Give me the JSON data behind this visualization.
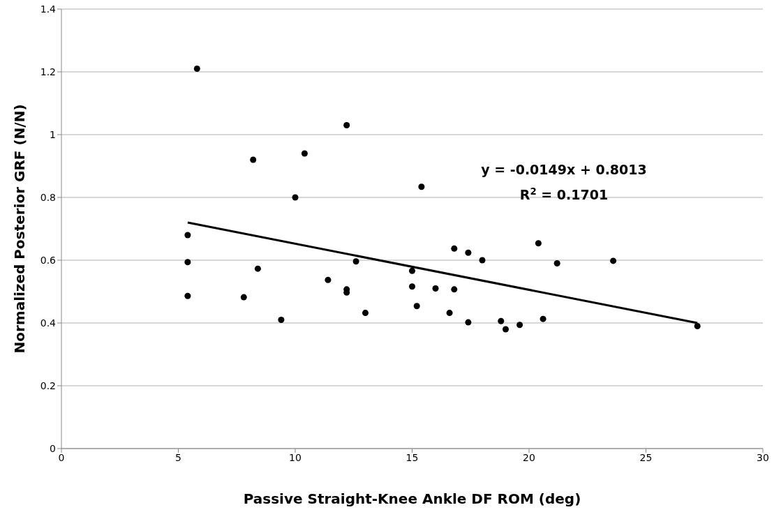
{
  "chart_data": {
    "type": "scatter",
    "xlabel": "Passive Straight-Knee Ankle DF ROM (deg)",
    "ylabel": "Normalized Posterior GRF (N/N)",
    "xlim": [
      0,
      30
    ],
    "xticks": [
      0,
      5,
      10,
      15,
      20,
      25,
      30
    ],
    "ylim": [
      0,
      1.4
    ],
    "yticks": [
      0,
      0.2,
      0.4,
      0.6,
      0.8,
      1,
      1.2,
      1.4
    ],
    "grid": "y",
    "marker": "circle",
    "series": [
      {
        "color": "#000000",
        "x": [
          5.4,
          5.4,
          5.4,
          5.8,
          7.8,
          8.2,
          8.4,
          9.4,
          10.0,
          10.4,
          11.4,
          12.2,
          12.2,
          12.2,
          12.6,
          13.0,
          15.0,
          15.0,
          15.2,
          15.4,
          16.0,
          16.6,
          16.8,
          16.8,
          17.4,
          17.4,
          18.0,
          18.8,
          19.0,
          19.6,
          20.4,
          20.6,
          21.2,
          23.6,
          27.2
        ],
        "values": [
          0.68,
          0.594,
          0.486,
          1.21,
          0.482,
          0.92,
          0.573,
          0.41,
          0.8,
          0.94,
          0.537,
          1.03,
          0.507,
          0.497,
          0.596,
          0.432,
          0.566,
          0.516,
          0.454,
          0.834,
          0.51,
          0.432,
          0.637,
          0.507,
          0.624,
          0.402,
          0.6,
          0.406,
          0.38,
          0.394,
          0.654,
          0.413,
          0.59,
          0.598,
          0.39
        ]
      },
      {
        "type": "line",
        "color": "#000000",
        "marker": "none",
        "x": [
          5.4,
          27.2
        ],
        "values": [
          0.72,
          0.4
        ]
      }
    ],
    "annotations": [
      "y = -0.0149x + 0.8013",
      "R$^{2}$ = 0.1701"
    ]
  }
}
